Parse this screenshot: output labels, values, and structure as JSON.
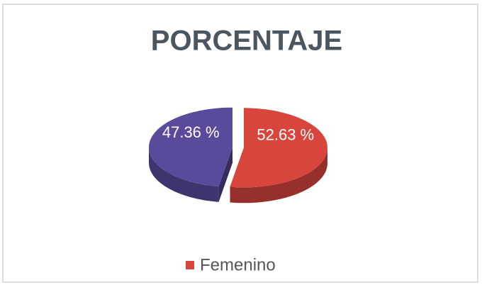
{
  "chart_data": {
    "type": "pie3d",
    "title": "PORCENTAJE",
    "categories": [
      "Femenino",
      null
    ],
    "values": [
      52.63,
      47.36
    ],
    "value_labels": [
      "52.63 %",
      "47.36 %"
    ],
    "colors": [
      "#d8453c",
      "#5a4a9c"
    ],
    "legend": "bottom"
  }
}
